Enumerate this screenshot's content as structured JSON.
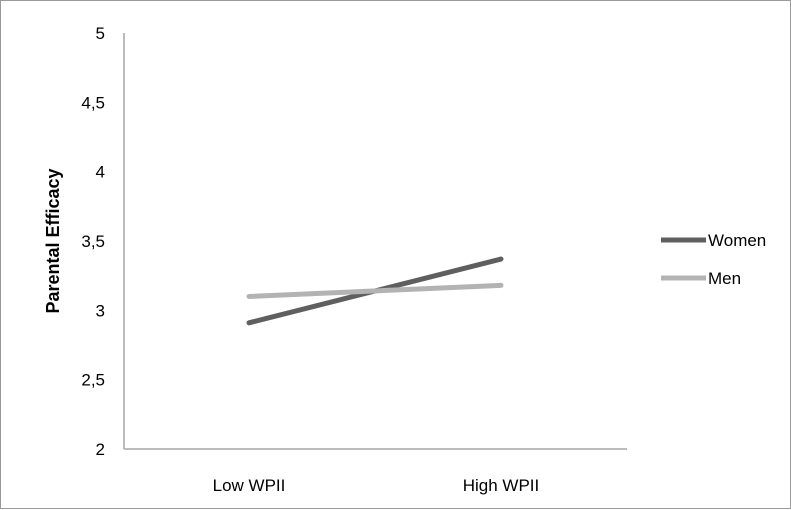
{
  "chart_data": {
    "type": "line",
    "title": "",
    "xlabel": "",
    "ylabel": "Parental Efficacy",
    "categories": [
      "Low WPII",
      "High WPII"
    ],
    "ylim": [
      2,
      5
    ],
    "yticks": [
      "2",
      "2,5",
      "3",
      "3,5",
      "4",
      "4,5",
      "5"
    ],
    "ytick_values": [
      2,
      2.5,
      3,
      3.5,
      4,
      4.5,
      5
    ],
    "grid": false,
    "legend_position": "right",
    "series": [
      {
        "name": "Women",
        "values": [
          2.91,
          3.37
        ],
        "color": "#5f5f5f"
      },
      {
        "name": "Men",
        "values": [
          3.1,
          3.18
        ],
        "color": "#b3b3b3"
      }
    ]
  }
}
